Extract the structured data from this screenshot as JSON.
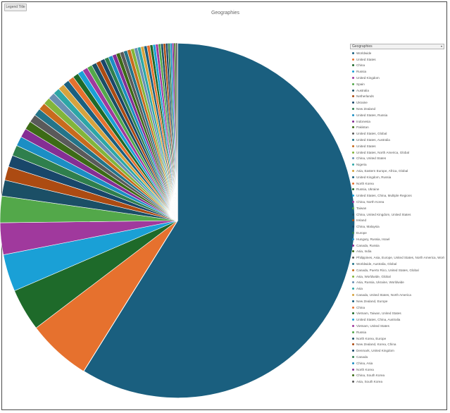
{
  "toolbar": {
    "button_label": "Legend Title"
  },
  "legend": {
    "select_label": "Geographies"
  },
  "colors": {
    "palette": [
      "#1a5f7f",
      "#e6712e",
      "#1e6a2a",
      "#1aa0d6",
      "#a0399d",
      "#53a84a",
      "#1b4f66",
      "#ac4b12",
      "#19476a",
      "#2f7f4d",
      "#1b8ec4",
      "#852e94",
      "#3c6b16",
      "#5a5a5a",
      "#247489",
      "#c86b1d",
      "#82b53b",
      "#6a8fb2",
      "#2da6a6",
      "#d6a33e"
    ]
  },
  "chart_data": {
    "type": "pie",
    "title": "Geographies",
    "slices": [
      {
        "label": "Worldwide",
        "value": 61.0
      },
      {
        "label": "United States",
        "value": 6.0
      },
      {
        "label": "China",
        "value": 4.0
      },
      {
        "label": "Russia",
        "value": 3.5
      },
      {
        "label": "United Kingdom",
        "value": 3.0
      },
      {
        "label": "Spain",
        "value": 2.5
      },
      {
        "label": "Australia",
        "value": 1.5
      },
      {
        "label": "Netherlands",
        "value": 1.3
      },
      {
        "label": "Ukraine",
        "value": 1.1
      },
      {
        "label": "New Zealand",
        "value": 1.0
      },
      {
        "label": "United States, Russia",
        "value": 0.9
      },
      {
        "label": "Indonesia",
        "value": 0.85
      },
      {
        "label": "Pakistan",
        "value": 0.8
      },
      {
        "label": "United States, Global",
        "value": 0.75
      },
      {
        "label": "United States, Australia",
        "value": 0.7
      },
      {
        "label": "United States",
        "value": 0.68
      },
      {
        "label": "United States, North America, Global",
        "value": 0.66
      },
      {
        "label": "China, United States",
        "value": 0.64
      },
      {
        "label": "Nigeria",
        "value": 0.62
      },
      {
        "label": "Asia, Eastern Europe, Africa, Global",
        "value": 0.6
      },
      {
        "label": "United Kingdom, Russia",
        "value": 0.58
      },
      {
        "label": "North Korea",
        "value": 0.56
      },
      {
        "label": "Russia, Ukraine",
        "value": 0.54
      },
      {
        "label": "United States, China, Multiple Regions",
        "value": 0.52
      },
      {
        "label": "China, North Korea",
        "value": 0.5
      },
      {
        "label": "Taiwan",
        "value": 0.48
      },
      {
        "label": "China, United Kingdom, United States",
        "value": 0.46
      },
      {
        "label": "Ireland",
        "value": 0.44
      },
      {
        "label": "China, Malaysia",
        "value": 0.42
      },
      {
        "label": "Europe",
        "value": 0.4
      },
      {
        "label": "Hungary, Russia, Israel",
        "value": 0.39
      },
      {
        "label": "Canada, Russia",
        "value": 0.38
      },
      {
        "label": "Asia, India",
        "value": 0.37
      },
      {
        "label": "Philippines, Asia, Europe, United States, North America, Worldwide",
        "value": 0.36
      },
      {
        "label": "Worldwide, Australia, Global",
        "value": 0.35
      },
      {
        "label": "Canada, Puerto Rico, United States, Global",
        "value": 0.34
      },
      {
        "label": "Asia, Worldwide, Global",
        "value": 0.33
      },
      {
        "label": "Asia, Russia, Ukraine, Worldwide",
        "value": 0.32
      },
      {
        "label": "Asia",
        "value": 0.31
      },
      {
        "label": "Canada, United States, North America",
        "value": 0.3
      },
      {
        "label": "New Zealand, Europe",
        "value": 0.29
      },
      {
        "label": "China",
        "value": 0.28
      },
      {
        "label": "Vietnam, Taiwan, United States",
        "value": 0.27
      },
      {
        "label": "United States, China, Australia",
        "value": 0.26
      },
      {
        "label": "Vietnam, United States",
        "value": 0.25
      },
      {
        "label": "Russia",
        "value": 0.24
      },
      {
        "label": "North Korea, Europe",
        "value": 0.23
      },
      {
        "label": "New Zealand, Korea, China",
        "value": 0.22
      },
      {
        "label": "Denmark, United Kingdom",
        "value": 0.21
      },
      {
        "label": "Canada",
        "value": 0.2
      },
      {
        "label": "China, Asia",
        "value": 0.19
      },
      {
        "label": "North Korea",
        "value": 0.18
      },
      {
        "label": "China, South Korea",
        "value": 0.17
      },
      {
        "label": "Asia, South Korea",
        "value": 0.16
      }
    ]
  }
}
